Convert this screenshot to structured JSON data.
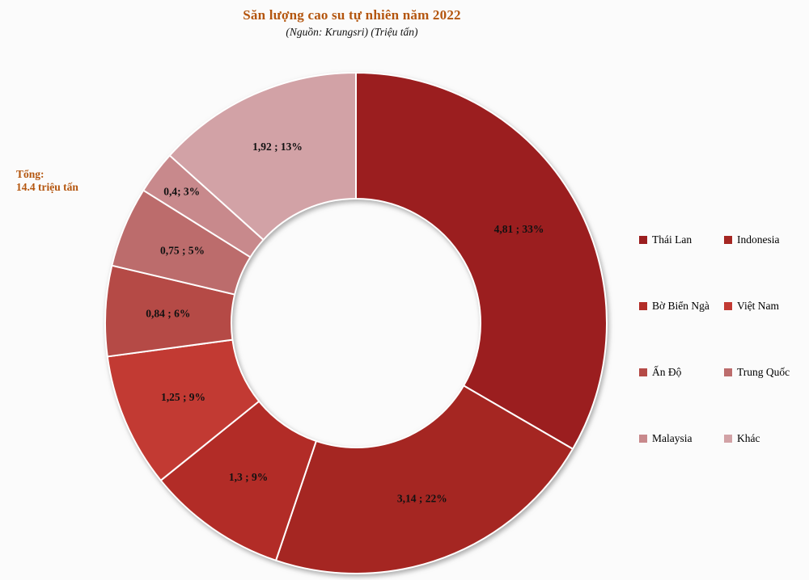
{
  "page": {
    "background": "#fbfbfb"
  },
  "title": {
    "text": "Săn lượng cao su tự nhiên năm 2022",
    "color": "#b4560f"
  },
  "subtitle": {
    "text": "(Nguồn: Krungsri) (Triệu tấn)"
  },
  "total": {
    "line1": "Tổng:",
    "line2": "14.4 triệu tấn",
    "color": "#b4560f"
  },
  "chart_data": {
    "type": "pie",
    "donut": true,
    "title": "Săn lượng cao su tự nhiên năm 2022",
    "source_note": "(Nguồn: Krungsri) (Triệu tấn)",
    "unit": "Triệu tấn",
    "total_label": "Tổng: 14.4 triệu tấn",
    "legend_position": "right",
    "start_angle_deg": 0,
    "direction": "clockwise",
    "slices": [
      {
        "id": "thai-lan",
        "label": "Thái Lan",
        "value": 4.81,
        "percent": 33,
        "value_label": "4,81 ; 33%",
        "color": "#9b1e1f"
      },
      {
        "id": "indonesia",
        "label": "Indonesia",
        "value": 3.14,
        "percent": 22,
        "value_label": "3,14 ; 22%",
        "color": "#a52622"
      },
      {
        "id": "bo-bien-nga",
        "label": "Bờ Biển Ngà",
        "value": 1.3,
        "percent": 9,
        "value_label": "1,3 ; 9%",
        "color": "#b22c27"
      },
      {
        "id": "viet-nam",
        "label": "Việt Nam",
        "value": 1.25,
        "percent": 9,
        "value_label": "1,25 ; 9%",
        "color": "#c23a33"
      },
      {
        "id": "an-do",
        "label": "Ấn Độ",
        "value": 0.84,
        "percent": 6,
        "value_label": "0,84 ; 6%",
        "color": "#b54a46"
      },
      {
        "id": "trung-quoc",
        "label": "Trung Quốc",
        "value": 0.75,
        "percent": 5,
        "value_label": "0,75 ; 5%",
        "color": "#bc6c6c"
      },
      {
        "id": "malaysia",
        "label": "Malaysia",
        "value": 0.4,
        "percent": 3,
        "value_label": "0,4; 3%",
        "color": "#c8898c"
      },
      {
        "id": "khac",
        "label": "Khác",
        "value": 1.92,
        "percent": 13,
        "value_label": "1,92 ; 13%",
        "color": "#d2a2a6"
      }
    ]
  }
}
